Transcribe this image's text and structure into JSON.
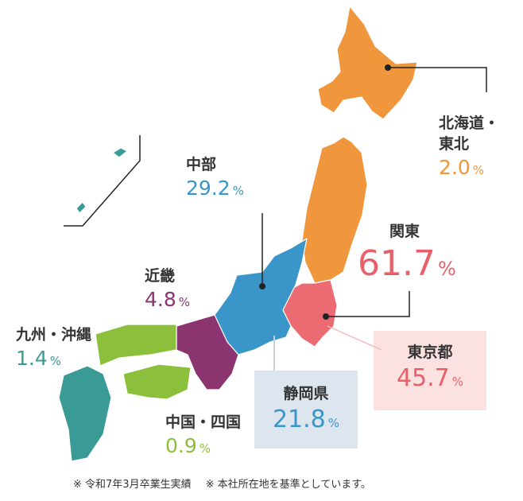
{
  "regions": [
    {
      "label_lines": [
        "北海道・",
        "東北"
      ],
      "value": "2.0"
    },
    {
      "label_lines": [
        "中部"
      ],
      "value": "29.2"
    },
    {
      "label_lines": [
        "関東"
      ],
      "value": "61.7"
    },
    {
      "label_lines": [
        "近畿"
      ],
      "value": "4.8"
    },
    {
      "label_lines": [
        "九州・沖縄"
      ],
      "value": "1.4"
    },
    {
      "label_lines": [
        "静岡県"
      ],
      "value": "21.8"
    },
    {
      "label_lines": [
        "東京都"
      ],
      "value": "45.7"
    },
    {
      "label_lines": [
        "中国・四国"
      ],
      "value": "0.9"
    }
  ],
  "unit": "%",
  "notes": [
    "※ 令和7年3月卒業生実績",
    "※ 本社所在地を基準としています。"
  ]
}
